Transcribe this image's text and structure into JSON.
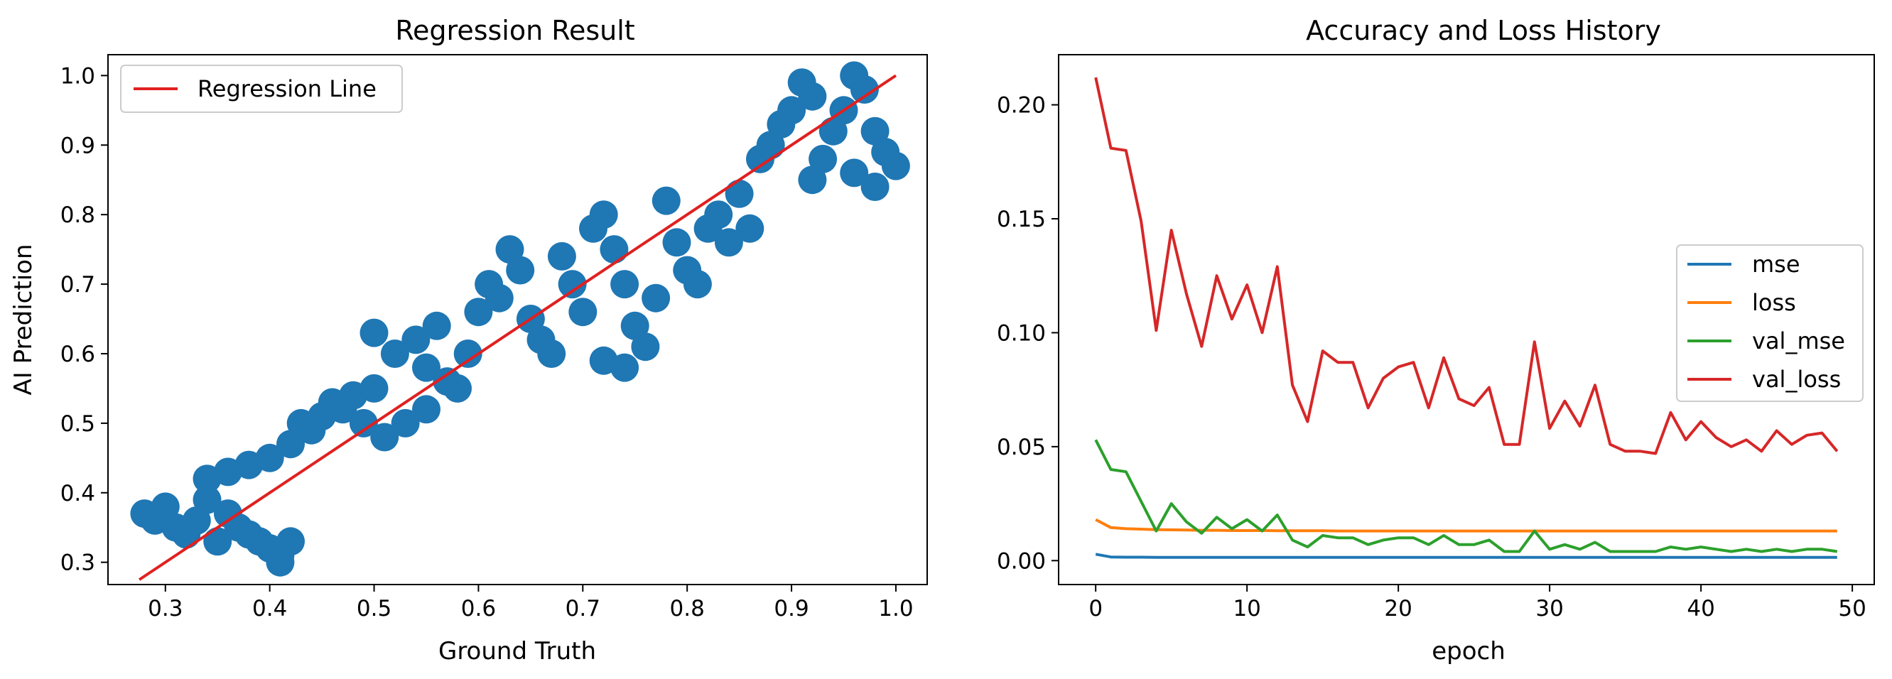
{
  "chart_data": [
    {
      "type": "scatter",
      "title": "Regression Result",
      "xlabel": "Ground Truth",
      "ylabel": "AI Prediction",
      "xlim": [
        0.245,
        1.03
      ],
      "ylim": [
        0.268,
        1.03
      ],
      "xticks": [
        "0.3",
        "0.4",
        "0.5",
        "0.6",
        "0.7",
        "0.8",
        "0.9",
        "1.0"
      ],
      "yticks": [
        "0.3",
        "0.4",
        "0.5",
        "0.6",
        "0.7",
        "0.8",
        "0.9",
        "1.0"
      ],
      "legend": {
        "placement": "upper-left",
        "entries": [
          "Regression Line"
        ]
      },
      "grid": false,
      "series": [
        {
          "kind": "scatter",
          "color": "#1f77b4",
          "points": [
            [
              0.28,
              0.37
            ],
            [
              0.29,
              0.36
            ],
            [
              0.3,
              0.38
            ],
            [
              0.31,
              0.35
            ],
            [
              0.32,
              0.34
            ],
            [
              0.33,
              0.36
            ],
            [
              0.34,
              0.39
            ],
            [
              0.35,
              0.33
            ],
            [
              0.36,
              0.37
            ],
            [
              0.37,
              0.35
            ],
            [
              0.38,
              0.34
            ],
            [
              0.39,
              0.33
            ],
            [
              0.4,
              0.32
            ],
            [
              0.41,
              0.31
            ],
            [
              0.41,
              0.3
            ],
            [
              0.42,
              0.33
            ],
            [
              0.34,
              0.42
            ],
            [
              0.36,
              0.43
            ],
            [
              0.38,
              0.44
            ],
            [
              0.4,
              0.45
            ],
            [
              0.42,
              0.47
            ],
            [
              0.43,
              0.5
            ],
            [
              0.44,
              0.49
            ],
            [
              0.45,
              0.51
            ],
            [
              0.46,
              0.53
            ],
            [
              0.47,
              0.52
            ],
            [
              0.48,
              0.54
            ],
            [
              0.5,
              0.55
            ],
            [
              0.49,
              0.5
            ],
            [
              0.51,
              0.48
            ],
            [
              0.53,
              0.5
            ],
            [
              0.55,
              0.52
            ],
            [
              0.5,
              0.63
            ],
            [
              0.52,
              0.6
            ],
            [
              0.54,
              0.62
            ],
            [
              0.56,
              0.64
            ],
            [
              0.55,
              0.58
            ],
            [
              0.57,
              0.56
            ],
            [
              0.58,
              0.55
            ],
            [
              0.59,
              0.6
            ],
            [
              0.6,
              0.66
            ],
            [
              0.61,
              0.7
            ],
            [
              0.62,
              0.68
            ],
            [
              0.63,
              0.75
            ],
            [
              0.64,
              0.72
            ],
            [
              0.65,
              0.65
            ],
            [
              0.66,
              0.62
            ],
            [
              0.67,
              0.6
            ],
            [
              0.68,
              0.74
            ],
            [
              0.69,
              0.7
            ],
            [
              0.7,
              0.66
            ],
            [
              0.71,
              0.78
            ],
            [
              0.72,
              0.8
            ],
            [
              0.73,
              0.75
            ],
            [
              0.74,
              0.7
            ],
            [
              0.75,
              0.64
            ],
            [
              0.72,
              0.59
            ],
            [
              0.74,
              0.58
            ],
            [
              0.76,
              0.61
            ],
            [
              0.77,
              0.68
            ],
            [
              0.78,
              0.82
            ],
            [
              0.79,
              0.76
            ],
            [
              0.8,
              0.72
            ],
            [
              0.81,
              0.7
            ],
            [
              0.82,
              0.78
            ],
            [
              0.83,
              0.8
            ],
            [
              0.84,
              0.76
            ],
            [
              0.85,
              0.83
            ],
            [
              0.86,
              0.78
            ],
            [
              0.87,
              0.88
            ],
            [
              0.88,
              0.9
            ],
            [
              0.89,
              0.93
            ],
            [
              0.9,
              0.95
            ],
            [
              0.91,
              0.99
            ],
            [
              0.92,
              0.97
            ],
            [
              0.93,
              0.88
            ],
            [
              0.94,
              0.92
            ],
            [
              0.95,
              0.95
            ],
            [
              0.96,
              1.0
            ],
            [
              0.97,
              0.98
            ],
            [
              0.98,
              0.92
            ],
            [
              0.99,
              0.89
            ],
            [
              1.0,
              0.87
            ],
            [
              0.98,
              0.84
            ],
            [
              0.96,
              0.86
            ],
            [
              0.92,
              0.85
            ]
          ]
        },
        {
          "kind": "line",
          "name": "Regression Line",
          "color": "#e02020",
          "x": [
            0.275,
            1.0
          ],
          "y": [
            0.275,
            1.0
          ]
        }
      ]
    },
    {
      "type": "line",
      "title": "Accuracy and Loss History",
      "xlabel": "epoch",
      "ylabel": "",
      "xlim": [
        -2.45,
        51.45
      ],
      "ylim": [
        -0.0105,
        0.222
      ],
      "xticks": [
        "0",
        "10",
        "20",
        "30",
        "40",
        "50"
      ],
      "yticks": [
        "0.00",
        "0.05",
        "0.10",
        "0.15",
        "0.20"
      ],
      "legend": {
        "placement": "center-right",
        "entries": [
          "mse",
          "loss",
          "val_mse",
          "val_loss"
        ]
      },
      "grid": false,
      "x": [
        0,
        1,
        2,
        3,
        4,
        5,
        6,
        7,
        8,
        9,
        10,
        11,
        12,
        13,
        14,
        15,
        16,
        17,
        18,
        19,
        20,
        21,
        22,
        23,
        24,
        25,
        26,
        27,
        28,
        29,
        30,
        31,
        32,
        33,
        34,
        35,
        36,
        37,
        38,
        39,
        40,
        41,
        42,
        43,
        44,
        45,
        46,
        47,
        48,
        49
      ],
      "series": [
        {
          "name": "mse",
          "color": "#1f77b4",
          "values": [
            0.0028,
            0.0016,
            0.0015,
            0.0015,
            0.0014,
            0.0014,
            0.0014,
            0.0014,
            0.0014,
            0.0014,
            0.0014,
            0.0014,
            0.0014,
            0.0014,
            0.0014,
            0.0014,
            0.0014,
            0.0014,
            0.0014,
            0.0014,
            0.0014,
            0.0014,
            0.0014,
            0.0014,
            0.0014,
            0.0014,
            0.0014,
            0.0014,
            0.0014,
            0.0014,
            0.0014,
            0.0014,
            0.0014,
            0.0014,
            0.0014,
            0.0014,
            0.0014,
            0.0014,
            0.0014,
            0.0014,
            0.0014,
            0.0014,
            0.0014,
            0.0014,
            0.0014,
            0.0014,
            0.0014,
            0.0014,
            0.0014,
            0.0014
          ]
        },
        {
          "name": "loss",
          "color": "#ff7f0e",
          "values": [
            0.018,
            0.0145,
            0.014,
            0.0138,
            0.0136,
            0.0135,
            0.0134,
            0.0133,
            0.0133,
            0.0132,
            0.0132,
            0.0132,
            0.0131,
            0.0131,
            0.0131,
            0.0131,
            0.013,
            0.013,
            0.013,
            0.013,
            0.013,
            0.013,
            0.013,
            0.013,
            0.013,
            0.013,
            0.013,
            0.013,
            0.013,
            0.013,
            0.013,
            0.013,
            0.013,
            0.013,
            0.013,
            0.013,
            0.013,
            0.013,
            0.013,
            0.013,
            0.013,
            0.013,
            0.013,
            0.013,
            0.013,
            0.013,
            0.013,
            0.013,
            0.013,
            0.013
          ]
        },
        {
          "name": "val_mse",
          "color": "#2ca02c",
          "values": [
            0.053,
            0.04,
            0.039,
            0.026,
            0.013,
            0.025,
            0.017,
            0.012,
            0.019,
            0.014,
            0.018,
            0.013,
            0.02,
            0.009,
            0.006,
            0.011,
            0.01,
            0.01,
            0.007,
            0.009,
            0.01,
            0.01,
            0.007,
            0.011,
            0.007,
            0.007,
            0.009,
            0.004,
            0.004,
            0.013,
            0.005,
            0.007,
            0.005,
            0.008,
            0.004,
            0.004,
            0.004,
            0.004,
            0.006,
            0.005,
            0.006,
            0.005,
            0.004,
            0.005,
            0.004,
            0.005,
            0.004,
            0.005,
            0.005,
            0.004
          ]
        },
        {
          "name": "val_loss",
          "color": "#d62728",
          "values": [
            0.212,
            0.181,
            0.18,
            0.149,
            0.101,
            0.145,
            0.117,
            0.094,
            0.125,
            0.106,
            0.121,
            0.1,
            0.129,
            0.077,
            0.061,
            0.092,
            0.087,
            0.087,
            0.067,
            0.08,
            0.085,
            0.087,
            0.067,
            0.089,
            0.071,
            0.068,
            0.076,
            0.051,
            0.051,
            0.096,
            0.058,
            0.07,
            0.059,
            0.077,
            0.051,
            0.048,
            0.048,
            0.047,
            0.065,
            0.053,
            0.061,
            0.054,
            0.05,
            0.053,
            0.048,
            0.057,
            0.051,
            0.055,
            0.056,
            0.048
          ]
        }
      ]
    }
  ]
}
